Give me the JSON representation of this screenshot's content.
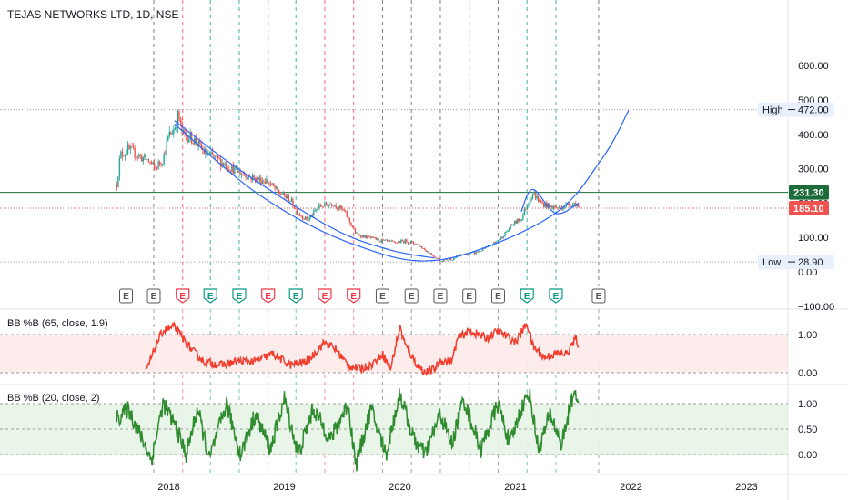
{
  "chart_title": "TEJAS NETWORKS LTD, 1D, NSE",
  "colors": {
    "up": "#26a69a",
    "down": "#ef5350",
    "price_line": "#1e6b3a",
    "last_label": "#ef5350",
    "curve": "#2962ff",
    "bb1": "#f23d2d",
    "bb2": "#2e8b2e",
    "earnings_red": "#f23645",
    "earnings_teal": "#089981",
    "earnings_gray": "#555555"
  },
  "chart_data": [
    {
      "type": "candlestick",
      "title": "TEJAS NETWORKS LTD, 1D, NSE",
      "y_ticks": [
        600,
        500,
        400,
        300,
        200,
        100,
        0,
        -100
      ],
      "y_tick_labels": [
        "600.00",
        "500.00",
        "400.00",
        "300.00",
        "200.00",
        "100.00",
        "0.00",
        "−100.00"
      ],
      "x_ticks": [
        "2018",
        "2019",
        "2020",
        "2021",
        "2022",
        "2023"
      ],
      "price_anchors": [
        [
          2017.55,
          255
        ],
        [
          2017.58,
          340
        ],
        [
          2017.65,
          355
        ],
        [
          2017.75,
          335
        ],
        [
          2017.82,
          325
        ],
        [
          2017.88,
          300
        ],
        [
          2017.95,
          330
        ],
        [
          2018.0,
          395
        ],
        [
          2018.05,
          420
        ],
        [
          2018.08,
          455
        ],
        [
          2018.12,
          400
        ],
        [
          2018.2,
          390
        ],
        [
          2018.3,
          350
        ],
        [
          2018.45,
          320
        ],
        [
          2018.6,
          290
        ],
        [
          2018.75,
          270
        ],
        [
          2018.85,
          265
        ],
        [
          2018.95,
          230
        ],
        [
          2019.05,
          210
        ],
        [
          2019.12,
          170
        ],
        [
          2019.2,
          150
        ],
        [
          2019.3,
          190
        ],
        [
          2019.42,
          200
        ],
        [
          2019.52,
          175
        ],
        [
          2019.62,
          110
        ],
        [
          2019.72,
          100
        ],
        [
          2019.85,
          90
        ],
        [
          2019.95,
          85
        ],
        [
          2020.05,
          90
        ],
        [
          2020.15,
          80
        ],
        [
          2020.28,
          50
        ],
        [
          2020.35,
          33
        ],
        [
          2020.45,
          38
        ],
        [
          2020.55,
          50
        ],
        [
          2020.65,
          55
        ],
        [
          2020.78,
          75
        ],
        [
          2020.88,
          100
        ],
        [
          2020.98,
          140
        ],
        [
          2021.05,
          155
        ],
        [
          2021.1,
          195
        ],
        [
          2021.15,
          230
        ],
        [
          2021.22,
          200
        ],
        [
          2021.3,
          190
        ],
        [
          2021.38,
          185
        ],
        [
          2021.45,
          195
        ],
        [
          2021.52,
          200
        ],
        [
          2021.55,
          185
        ]
      ],
      "price_line": {
        "value": 231.3,
        "label": "231.30"
      },
      "last_price": {
        "value": 185.1,
        "label": "185.10"
      },
      "high": {
        "label": "High",
        "value": 472.0,
        "value_label": "472.00"
      },
      "low": {
        "label": "Low",
        "value": 28.9,
        "value_label": "28.90"
      },
      "cup_curves": [
        {
          "name": "",
          "points": [
            [
              2018.05,
              430
            ],
            [
              2018.8,
              220
            ],
            [
              2019.6,
              80
            ],
            [
              2020.35,
              35
            ],
            [
              2021.3,
              160
            ],
            [
              2021.75,
              330
            ],
            [
              2021.98,
              470
            ]
          ]
        },
        {
          "name": "",
          "points": [
            [
              2018.05,
              440
            ],
            [
              2018.6,
              300
            ],
            [
              2019.4,
              130
            ],
            [
              2019.9,
              65
            ],
            [
              2020.3,
              40
            ]
          ]
        },
        {
          "name": "",
          "points": [
            [
              2021.05,
              175
            ],
            [
              2021.15,
              240
            ],
            [
              2021.35,
              170
            ],
            [
              2021.55,
              200
            ]
          ]
        }
      ],
      "earnings": [
        {
          "x": 2017.63,
          "type": "gray",
          "label": "E"
        },
        {
          "x": 2017.87,
          "type": "gray",
          "label": "E"
        },
        {
          "x": 2018.12,
          "type": "red",
          "label": "E"
        },
        {
          "x": 2018.36,
          "type": "teal",
          "label": "E"
        },
        {
          "x": 2018.61,
          "type": "teal",
          "label": "E"
        },
        {
          "x": 2018.86,
          "type": "red",
          "label": "E"
        },
        {
          "x": 2019.1,
          "type": "teal",
          "label": "E"
        },
        {
          "x": 2019.35,
          "type": "red",
          "label": "E"
        },
        {
          "x": 2019.6,
          "type": "red",
          "label": "E"
        },
        {
          "x": 2019.85,
          "type": "gray",
          "label": "E"
        },
        {
          "x": 2020.1,
          "type": "gray",
          "label": "E"
        },
        {
          "x": 2020.35,
          "type": "gray",
          "label": "E"
        },
        {
          "x": 2020.6,
          "type": "gray",
          "label": "E"
        },
        {
          "x": 2020.85,
          "type": "gray",
          "label": "E"
        },
        {
          "x": 2021.1,
          "type": "teal",
          "label": "E"
        },
        {
          "x": 2021.35,
          "type": "teal",
          "label": "E"
        },
        {
          "x": 2021.72,
          "type": "gray",
          "label": "E"
        }
      ]
    },
    {
      "type": "line",
      "title": "BB %B (65, close, 1.9)",
      "y_ticks": [
        1.0,
        0.0
      ],
      "y_tick_labels": [
        "1.00",
        "0.00"
      ],
      "band": [
        0,
        1
      ],
      "anchors": [
        [
          2017.8,
          0.0
        ],
        [
          2017.85,
          0.4
        ],
        [
          2017.9,
          0.8
        ],
        [
          2017.95,
          1.1
        ],
        [
          2018.05,
          1.2
        ],
        [
          2018.12,
          0.9
        ],
        [
          2018.2,
          0.6
        ],
        [
          2018.3,
          0.3
        ],
        [
          2018.45,
          0.2
        ],
        [
          2018.6,
          0.3
        ],
        [
          2018.75,
          0.3
        ],
        [
          2018.9,
          0.5
        ],
        [
          2019.05,
          0.2
        ],
        [
          2019.2,
          0.3
        ],
        [
          2019.35,
          0.8
        ],
        [
          2019.45,
          0.6
        ],
        [
          2019.55,
          0.2
        ],
        [
          2019.65,
          0.1
        ],
        [
          2019.75,
          0.2
        ],
        [
          2019.85,
          0.5
        ],
        [
          2019.92,
          0.1
        ],
        [
          2020.0,
          1.2
        ],
        [
          2020.05,
          0.7
        ],
        [
          2020.15,
          0.2
        ],
        [
          2020.22,
          0.0
        ],
        [
          2020.3,
          0.1
        ],
        [
          2020.35,
          0.3
        ],
        [
          2020.45,
          0.3
        ],
        [
          2020.5,
          0.9
        ],
        [
          2020.6,
          1.1
        ],
        [
          2020.75,
          0.9
        ],
        [
          2020.85,
          1.1
        ],
        [
          2021.0,
          0.8
        ],
        [
          2021.1,
          1.3
        ],
        [
          2021.15,
          0.7
        ],
        [
          2021.25,
          0.4
        ],
        [
          2021.35,
          0.5
        ],
        [
          2021.45,
          0.5
        ],
        [
          2021.52,
          0.9
        ],
        [
          2021.55,
          0.7
        ]
      ]
    },
    {
      "type": "line",
      "title": "BB %B (20, close, 2)",
      "y_ticks": [
        1.0,
        0.5,
        0.0
      ],
      "y_tick_labels": [
        "1.00",
        "0.50",
        "0.00"
      ],
      "band": [
        0,
        1
      ],
      "anchors": [
        [
          2017.55,
          0.7
        ],
        [
          2017.65,
          0.9
        ],
        [
          2017.75,
          0.4
        ],
        [
          2017.85,
          -0.1
        ],
        [
          2017.95,
          1.0
        ],
        [
          2018.05,
          0.6
        ],
        [
          2018.15,
          0.0
        ],
        [
          2018.25,
          0.9
        ],
        [
          2018.35,
          -0.1
        ],
        [
          2018.5,
          1.0
        ],
        [
          2018.62,
          0.0
        ],
        [
          2018.75,
          0.8
        ],
        [
          2018.88,
          0.1
        ],
        [
          2019.0,
          1.1
        ],
        [
          2019.12,
          0.0
        ],
        [
          2019.25,
          0.9
        ],
        [
          2019.4,
          0.3
        ],
        [
          2019.55,
          1.0
        ],
        [
          2019.62,
          -0.2
        ],
        [
          2019.75,
          0.9
        ],
        [
          2019.88,
          0.0
        ],
        [
          2020.0,
          1.2
        ],
        [
          2020.12,
          0.3
        ],
        [
          2020.22,
          0.0
        ],
        [
          2020.35,
          0.8
        ],
        [
          2020.45,
          0.2
        ],
        [
          2020.55,
          1.1
        ],
        [
          2020.7,
          0.1
        ],
        [
          2020.85,
          1.0
        ],
        [
          2020.95,
          0.2
        ],
        [
          2021.05,
          0.9
        ],
        [
          2021.12,
          1.2
        ],
        [
          2021.2,
          0.1
        ],
        [
          2021.3,
          0.8
        ],
        [
          2021.4,
          0.2
        ],
        [
          2021.48,
          1.0
        ],
        [
          2021.52,
          1.3
        ],
        [
          2021.55,
          0.8
        ]
      ]
    }
  ]
}
